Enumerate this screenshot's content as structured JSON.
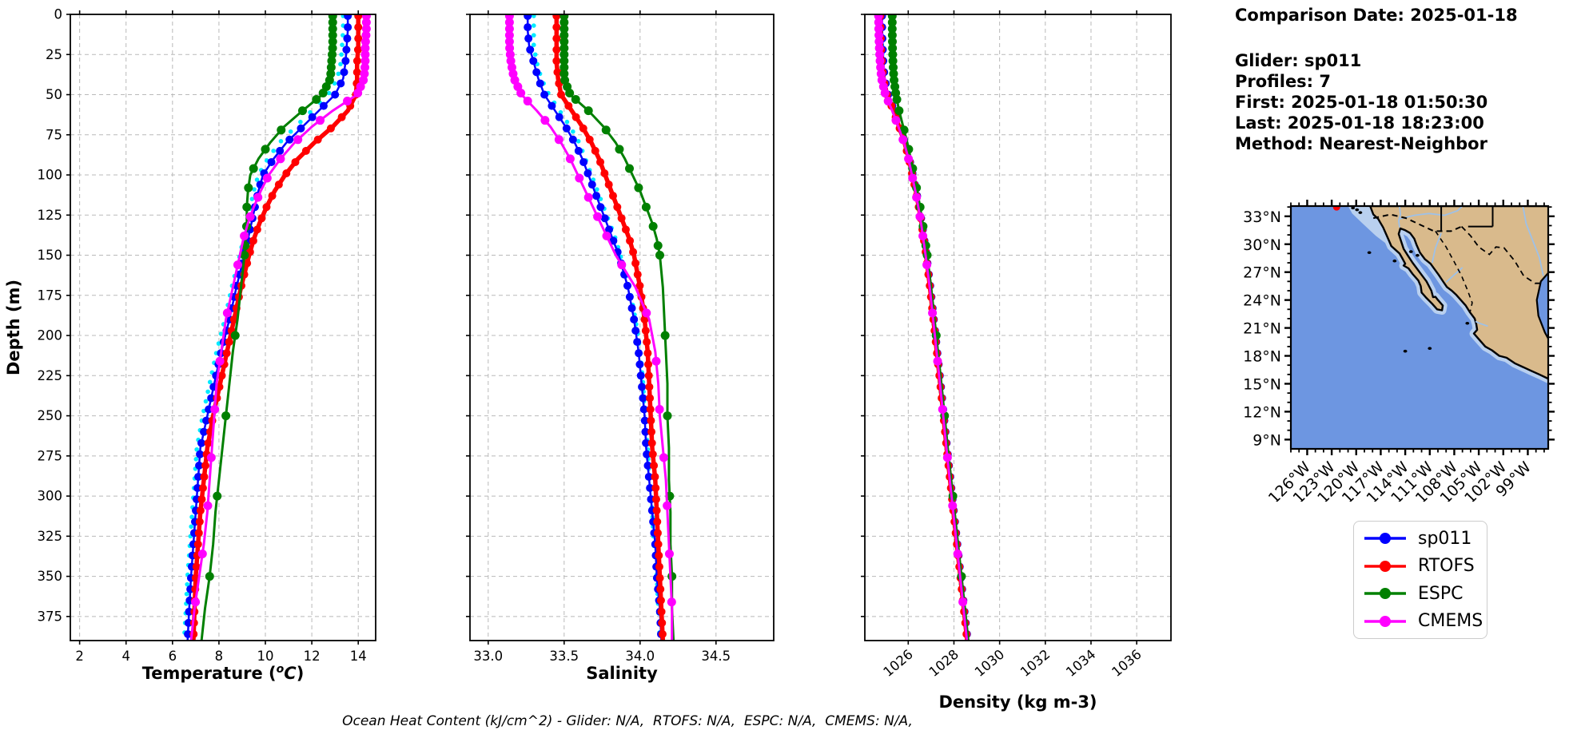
{
  "info_panel": {
    "comparison_date": "Comparison Date: 2025-01-18",
    "glider": "Glider: sp011",
    "profiles": "Profiles: 7",
    "first": "First: 2025-01-18 01:50:30",
    "last": "Last: 2025-01-18 18:23:00",
    "method": "Method: Nearest-Neighbor"
  },
  "footer_note": "Ocean Heat Content (kJ/cm^2) - Glider: N/A,  RTOFS: N/A,  ESPC: N/A,  CMEMS: N/A,",
  "legend": {
    "items": [
      {
        "label": "sp011",
        "color": "#0000ff"
      },
      {
        "label": "RTOFS",
        "color": "#ff0000"
      },
      {
        "label": "ESPC",
        "color": "#008000"
      },
      {
        "label": "CMEMS",
        "color": "#ff00ff"
      }
    ]
  },
  "chart_data": [
    {
      "type": "line",
      "title": "",
      "xlabel_parts": {
        "pre": "Temperature (",
        "sup": "o",
        "main": "C",
        "post": ")"
      },
      "ylabel": "Depth (m)",
      "xlim": [
        1.6,
        14.75
      ],
      "ylim": [
        0,
        390
      ],
      "xticks": [
        2,
        4,
        6,
        8,
        10,
        12,
        14
      ],
      "xtick_labels": [
        "2",
        "4",
        "6",
        "8",
        "10",
        "12",
        "14"
      ],
      "yticks": [
        0,
        25,
        50,
        75,
        100,
        125,
        150,
        175,
        200,
        225,
        250,
        275,
        300,
        325,
        350,
        375
      ],
      "grid": true,
      "legend_position": "outside-right",
      "depths": [
        0,
        10,
        20,
        30,
        40,
        50,
        60,
        70,
        80,
        90,
        100,
        110,
        120,
        130,
        140,
        150,
        170,
        190,
        210,
        230,
        250,
        270,
        290,
        310,
        330,
        350,
        370,
        390
      ],
      "series": [
        {
          "name": "glider-profiles",
          "color": "#00eaff",
          "values": [
            13.35,
            13.35,
            13.3,
            13.25,
            13.1,
            12.7,
            12.0,
            11.3,
            10.6,
            10.1,
            9.7,
            9.5,
            9.35,
            9.2,
            9.05,
            8.9,
            8.55,
            8.25,
            7.9,
            7.6,
            7.3,
            7.05,
            6.95,
            6.85,
            6.75,
            6.65,
            6.58,
            6.5
          ]
        },
        {
          "name": "sp011",
          "color": "#0000ff",
          "values": [
            13.55,
            13.55,
            13.5,
            13.45,
            13.35,
            13.0,
            12.3,
            11.6,
            10.9,
            10.35,
            9.9,
            9.7,
            9.55,
            9.4,
            9.25,
            9.1,
            8.75,
            8.45,
            8.1,
            7.8,
            7.5,
            7.2,
            7.1,
            7.0,
            6.9,
            6.8,
            6.72,
            6.65
          ]
        },
        {
          "name": "RTOFS",
          "color": "#ff0000",
          "values": [
            14.0,
            14.0,
            14.0,
            13.95,
            13.95,
            13.9,
            13.55,
            12.9,
            12.1,
            11.4,
            10.85,
            10.4,
            10.05,
            9.75,
            9.5,
            9.3,
            8.95,
            8.65,
            8.35,
            8.05,
            7.75,
            7.5,
            7.35,
            7.2,
            7.1,
            7.0,
            6.95,
            6.9
          ]
        },
        {
          "name": "ESPC",
          "color": "#008000",
          "values": [
            12.9,
            12.9,
            12.9,
            12.85,
            12.8,
            12.45,
            11.6,
            10.8,
            10.2,
            9.7,
            9.35,
            9.25,
            9.2,
            9.2,
            9.15,
            9.1,
            8.95,
            8.8,
            8.6,
            8.45,
            8.3,
            8.15,
            8.0,
            7.85,
            7.75,
            7.6,
            7.4,
            7.25
          ]
        },
        {
          "name": "CMEMS",
          "color": "#ff00ff",
          "values": [
            14.35,
            14.35,
            14.3,
            14.3,
            14.25,
            13.95,
            12.9,
            12.0,
            11.25,
            10.65,
            10.15,
            9.8,
            9.5,
            9.25,
            9.05,
            8.9,
            8.6,
            8.3,
            8.1,
            7.9,
            7.8,
            7.7,
            7.6,
            7.5,
            7.35,
            7.15,
            6.95,
            6.8
          ]
        }
      ]
    },
    {
      "type": "line",
      "title": "",
      "xlabel_parts": {
        "pre": "Salinity",
        "sup": "",
        "main": "",
        "post": ""
      },
      "ylabel": "",
      "xlim": [
        32.88,
        34.88
      ],
      "ylim": [
        0,
        390
      ],
      "xticks": [
        33.0,
        33.5,
        34.0,
        34.5
      ],
      "xtick_labels": [
        "33.0",
        "33.5",
        "34.0",
        "34.5"
      ],
      "yticks": [
        0,
        25,
        50,
        75,
        100,
        125,
        150,
        175,
        200,
        225,
        250,
        275,
        300,
        325,
        350,
        375
      ],
      "grid": true,
      "depths": [
        0,
        10,
        20,
        30,
        40,
        50,
        60,
        70,
        80,
        90,
        100,
        110,
        120,
        130,
        140,
        150,
        170,
        190,
        210,
        230,
        250,
        270,
        290,
        310,
        330,
        350,
        370,
        390
      ],
      "series": [
        {
          "name": "glider-profiles",
          "color": "#00eaff",
          "values": [
            33.3,
            33.3,
            33.3,
            33.32,
            33.35,
            33.4,
            33.47,
            33.54,
            33.6,
            33.64,
            33.68,
            33.72,
            33.76,
            33.8,
            33.84,
            33.87,
            33.93,
            33.97,
            34.0,
            34.02,
            34.03,
            34.05,
            34.06,
            34.08,
            34.09,
            34.11,
            34.12,
            34.13
          ]
        },
        {
          "name": "sp011",
          "color": "#0000ff",
          "values": [
            33.26,
            33.26,
            33.27,
            33.3,
            33.33,
            33.37,
            33.44,
            33.51,
            33.57,
            33.62,
            33.66,
            33.7,
            33.74,
            33.78,
            33.82,
            33.86,
            33.92,
            33.96,
            33.99,
            34.01,
            34.03,
            34.04,
            34.06,
            34.08,
            34.1,
            34.11,
            34.13,
            34.14
          ]
        },
        {
          "name": "RTOFS",
          "color": "#ff0000",
          "values": [
            33.45,
            33.45,
            33.45,
            33.45,
            33.46,
            33.48,
            33.55,
            33.62,
            33.68,
            33.73,
            33.77,
            33.81,
            33.85,
            33.89,
            33.93,
            33.96,
            34.0,
            34.03,
            34.05,
            34.06,
            34.07,
            34.08,
            34.1,
            34.11,
            34.12,
            34.13,
            34.14,
            34.15
          ]
        },
        {
          "name": "ESPC",
          "color": "#008000",
          "values": [
            33.5,
            33.5,
            33.5,
            33.5,
            33.5,
            33.54,
            33.66,
            33.76,
            33.84,
            33.9,
            33.95,
            34.0,
            34.04,
            34.08,
            34.11,
            34.13,
            34.15,
            34.16,
            34.17,
            34.18,
            34.18,
            34.19,
            34.19,
            34.2,
            34.2,
            34.21,
            34.21,
            34.22
          ]
        },
        {
          "name": "CMEMS",
          "color": "#ff00ff",
          "values": [
            33.14,
            33.14,
            33.14,
            33.15,
            33.17,
            33.22,
            33.32,
            33.41,
            33.48,
            33.54,
            33.59,
            33.64,
            33.69,
            33.74,
            33.79,
            33.84,
            33.97,
            34.06,
            34.1,
            34.12,
            34.13,
            34.15,
            34.17,
            34.18,
            34.19,
            34.2,
            34.21,
            34.21
          ]
        }
      ]
    },
    {
      "type": "line",
      "title": "",
      "xlabel_parts": {
        "pre": "Density (kg m-3)",
        "sup": "",
        "main": "",
        "post": ""
      },
      "ylabel": "",
      "xlim": [
        1024.1,
        1037.5
      ],
      "ylim": [
        0,
        390
      ],
      "xticks": [
        1026,
        1028,
        1030,
        1032,
        1034,
        1036
      ],
      "xtick_labels": [
        "1026",
        "1028",
        "1030",
        "1032",
        "1034",
        "1036"
      ],
      "rotate_xticks": true,
      "yticks": [
        0,
        25,
        50,
        75,
        100,
        125,
        150,
        175,
        200,
        225,
        250,
        275,
        300,
        325,
        350,
        375
      ],
      "grid": true,
      "depths": [
        0,
        10,
        20,
        30,
        40,
        50,
        60,
        70,
        80,
        90,
        100,
        110,
        120,
        130,
        140,
        150,
        170,
        190,
        210,
        230,
        250,
        270,
        290,
        310,
        330,
        350,
        370,
        390
      ],
      "series": [
        {
          "name": "glider-profiles",
          "color": "#00eaff",
          "values": [
            1024.82,
            1024.83,
            1024.85,
            1024.88,
            1024.94,
            1025.09,
            1025.35,
            1025.59,
            1025.83,
            1026.02,
            1026.17,
            1026.32,
            1026.45,
            1026.57,
            1026.67,
            1026.77,
            1026.94,
            1027.09,
            1027.24,
            1027.39,
            1027.53,
            1027.67,
            1027.82,
            1027.97,
            1028.12,
            1028.27,
            1028.42,
            1028.57
          ]
        },
        {
          "name": "sp011",
          "color": "#0000ff",
          "values": [
            1024.85,
            1024.86,
            1024.88,
            1024.91,
            1024.97,
            1025.12,
            1025.38,
            1025.62,
            1025.86,
            1026.05,
            1026.2,
            1026.35,
            1026.48,
            1026.6,
            1026.7,
            1026.8,
            1026.97,
            1027.12,
            1027.27,
            1027.42,
            1027.56,
            1027.7,
            1027.85,
            1028.0,
            1028.15,
            1028.3,
            1028.45,
            1028.6
          ]
        },
        {
          "name": "RTOFS",
          "color": "#ff0000",
          "values": [
            1024.78,
            1024.79,
            1024.81,
            1024.85,
            1024.91,
            1025.07,
            1025.35,
            1025.6,
            1025.84,
            1026.03,
            1026.18,
            1026.33,
            1026.46,
            1026.58,
            1026.68,
            1026.78,
            1026.95,
            1027.1,
            1027.25,
            1027.4,
            1027.54,
            1027.68,
            1027.83,
            1027.98,
            1028.13,
            1028.28,
            1028.43,
            1028.58
          ]
        },
        {
          "name": "ESPC",
          "color": "#008000",
          "values": [
            1025.3,
            1025.3,
            1025.31,
            1025.33,
            1025.37,
            1025.46,
            1025.6,
            1025.78,
            1025.96,
            1026.11,
            1026.25,
            1026.39,
            1026.52,
            1026.63,
            1026.73,
            1026.83,
            1027.0,
            1027.15,
            1027.3,
            1027.45,
            1027.59,
            1027.73,
            1027.88,
            1028.03,
            1028.18,
            1028.33,
            1028.48,
            1028.63
          ]
        },
        {
          "name": "CMEMS",
          "color": "#ff00ff",
          "values": [
            1024.7,
            1024.71,
            1024.73,
            1024.77,
            1024.83,
            1025.0,
            1025.3,
            1025.57,
            1025.82,
            1026.01,
            1026.16,
            1026.31,
            1026.44,
            1026.56,
            1026.66,
            1026.76,
            1026.94,
            1027.09,
            1027.24,
            1027.39,
            1027.53,
            1027.67,
            1027.82,
            1027.97,
            1028.12,
            1028.27,
            1028.42,
            1028.57
          ]
        }
      ]
    }
  ],
  "map": {
    "lat_tick_labels": [
      "33°N",
      "30°N",
      "27°N",
      "24°N",
      "21°N",
      "18°N",
      "15°N",
      "12°N",
      "9°N"
    ],
    "lat_ticks": [
      33,
      30,
      27,
      24,
      21,
      18,
      15,
      12,
      9
    ],
    "lon_tick_labels": [
      "126°W",
      "123°W",
      "120°W",
      "117°W",
      "114°W",
      "111°W",
      "108°W",
      "105°W",
      "102°W",
      "99°W"
    ],
    "lon_ticks": [
      126,
      123,
      120,
      117,
      114,
      111,
      108,
      105,
      102,
      99
    ],
    "lat_range": [
      34.1,
      8.0
    ],
    "lon_range": [
      128.0,
      96.5
    ],
    "glider_position": {
      "lon": 122.4,
      "lat": 34.0
    },
    "colors": {
      "ocean": "#6d96e1",
      "shallow": "#b9d0ef",
      "land": "#d9ba8c",
      "coastline": "#000000",
      "river": "#9ec1e8",
      "glider_dot": "#ff0000"
    }
  }
}
